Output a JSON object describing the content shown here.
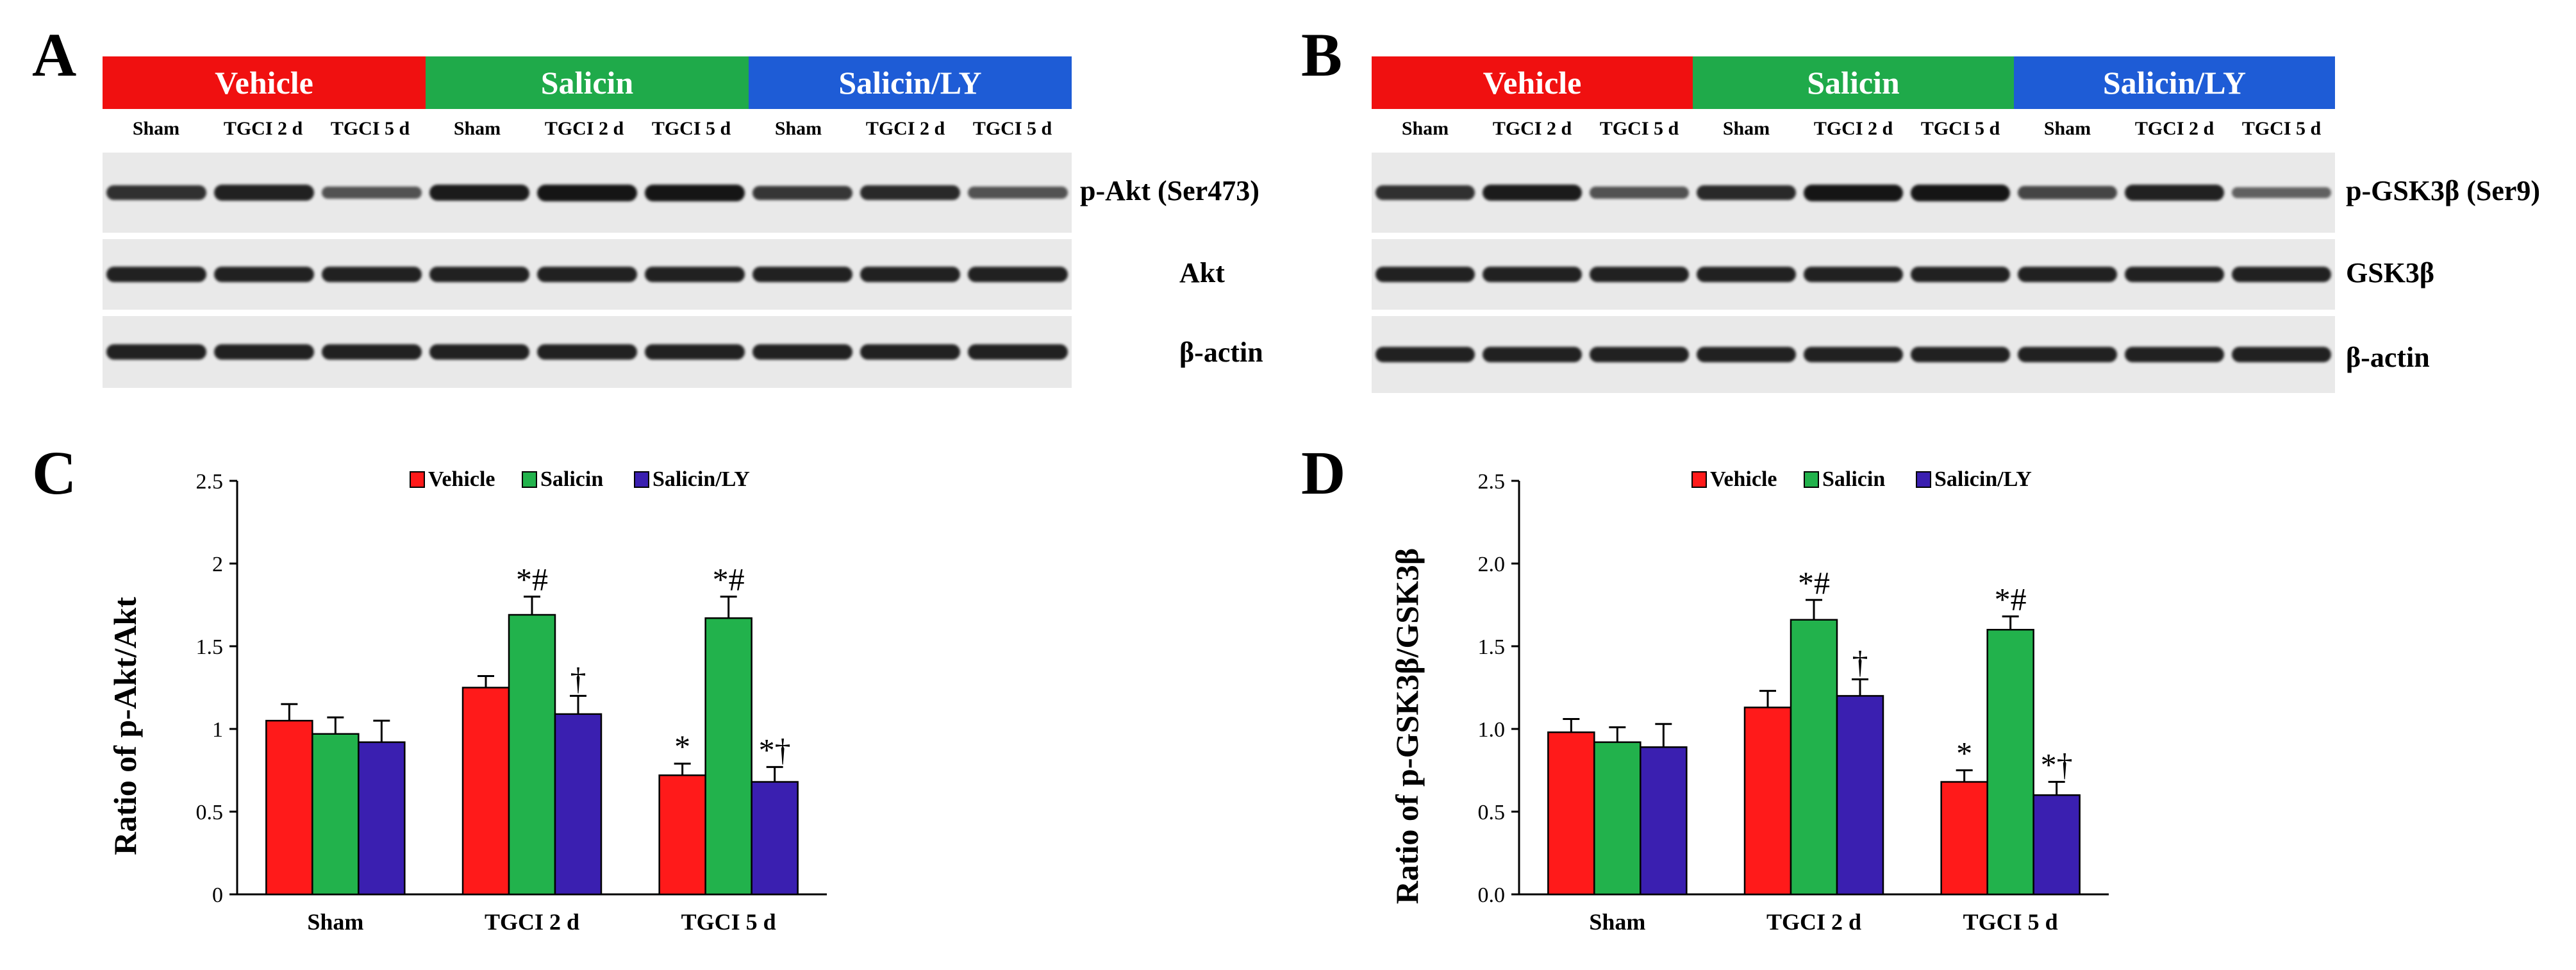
{
  "panels": {
    "a": "A",
    "b": "B",
    "c": "C",
    "d": "D"
  },
  "colors": {
    "vehicle": "#f01010",
    "salicin": "#1faa4a",
    "salicin_ly": "#1e5cd6",
    "bar_vehicle": "#ff1a1a",
    "bar_salicin": "#22b24c",
    "bar_salicin_ly": "#3a1fb0"
  },
  "blot_groups": [
    "Vehicle",
    "Salicin",
    "Salicin/LY"
  ],
  "blot_lanes": [
    "Sham",
    "TGCI 2 d",
    "TGCI 5 d",
    "Sham",
    "TGCI 2 d",
    "TGCI 5 d",
    "Sham",
    "TGCI 2 d",
    "TGCI 5 d"
  ],
  "blot_a": {
    "rows": [
      "p-Akt (Ser473)",
      "Akt",
      "β-actin"
    ],
    "intensity": [
      [
        0.8,
        0.9,
        0.55,
        0.95,
        1.0,
        1.0,
        0.75,
        0.85,
        0.55
      ],
      [
        0.9,
        0.9,
        0.9,
        0.9,
        0.9,
        0.9,
        0.9,
        0.9,
        0.9
      ],
      [
        0.9,
        0.9,
        0.9,
        0.9,
        0.9,
        0.9,
        0.9,
        0.9,
        0.9
      ]
    ]
  },
  "blot_b": {
    "rows": [
      "p-GSK3β (Ser9)",
      "GSK3β",
      "β-actin"
    ],
    "intensity": [
      [
        0.8,
        0.95,
        0.55,
        0.85,
        1.0,
        1.0,
        0.65,
        0.9,
        0.45
      ],
      [
        0.9,
        0.9,
        0.9,
        0.9,
        0.9,
        0.9,
        0.9,
        0.9,
        0.9
      ],
      [
        0.9,
        0.9,
        0.9,
        0.9,
        0.9,
        0.9,
        0.9,
        0.9,
        0.9
      ]
    ]
  },
  "chart_data": [
    {
      "type": "bar",
      "ylabel": "Ratio of p-Akt/Akt",
      "categories": [
        "Sham",
        "TGCI 2 d",
        "TGCI 5 d"
      ],
      "series": [
        {
          "name": "Vehicle",
          "values": [
            1.05,
            1.25,
            0.72
          ],
          "errors": [
            0.1,
            0.07,
            0.07
          ],
          "annotations": [
            "",
            "",
            "*"
          ]
        },
        {
          "name": "Salicin",
          "values": [
            0.97,
            1.69,
            1.67
          ],
          "errors": [
            0.1,
            0.11,
            0.13
          ],
          "annotations": [
            "",
            "*#",
            "*#"
          ]
        },
        {
          "name": "Salicin/LY",
          "values": [
            0.92,
            1.09,
            0.68
          ],
          "errors": [
            0.13,
            0.11,
            0.09
          ],
          "annotations": [
            "",
            "†",
            "*†"
          ]
        }
      ],
      "ylim": [
        0,
        2.5
      ],
      "yticks": [
        "0",
        "0.5",
        "1",
        "1.5",
        "2",
        "2.5"
      ],
      "legend": "top-center",
      "grid": false
    },
    {
      "type": "bar",
      "ylabel": "Ratio of p-GSK3β/GSK3β",
      "categories": [
        "Sham",
        "TGCI 2 d",
        "TGCI 5 d"
      ],
      "series": [
        {
          "name": "Vehicle",
          "values": [
            0.98,
            1.13,
            0.68
          ],
          "errors": [
            0.08,
            0.1,
            0.07
          ],
          "annotations": [
            "",
            "",
            "*"
          ]
        },
        {
          "name": "Salicin",
          "values": [
            0.92,
            1.66,
            1.6
          ],
          "errors": [
            0.09,
            0.12,
            0.08
          ],
          "annotations": [
            "",
            "*#",
            "*#"
          ]
        },
        {
          "name": "Salicin/LY",
          "values": [
            0.89,
            1.2,
            0.6
          ],
          "errors": [
            0.14,
            0.1,
            0.08
          ],
          "annotations": [
            "",
            "†",
            "*†"
          ]
        }
      ],
      "ylim": [
        0,
        2.5
      ],
      "yticks": [
        "0.0",
        "0.5",
        "1.0",
        "1.5",
        "2.0",
        "2.5"
      ],
      "legend": "top-center",
      "grid": false
    }
  ]
}
